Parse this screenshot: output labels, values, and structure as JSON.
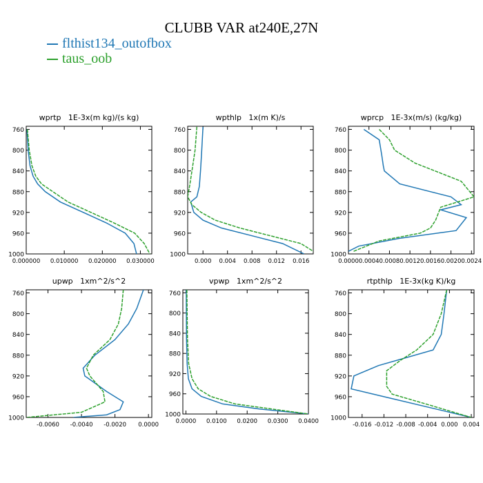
{
  "title": "CLUBB VAR at240E,27N",
  "legend": [
    {
      "label": "flthist134_outofbox",
      "color": "#1f77b4"
    },
    {
      "label": "taus_oob",
      "color": "#2ca02c"
    }
  ],
  "chart_data": [
    {
      "type": "line",
      "title": "wprtp   1E-3x(m kg)/(s kg)",
      "xlim": [
        0,
        0.033
      ],
      "ylim": [
        754,
        1000
      ],
      "y_inverted": true,
      "xticks": [
        0,
        0.01,
        0.02,
        0.03
      ],
      "xticklabels": [
        "0.000000",
        "0.010000",
        "0.020000",
        "0.030000"
      ],
      "yticks": [
        760,
        800,
        840,
        880,
        920,
        960,
        1000
      ],
      "series": [
        {
          "name": "flthist134_outofbox",
          "color": "#1f77b4",
          "dashed": false,
          "x": [
            0.0002,
            0.0005,
            0.001,
            0.0018,
            0.003,
            0.005,
            0.009,
            0.015,
            0.021,
            0.026,
            0.0283,
            0.029
          ],
          "y": [
            760,
            800,
            830,
            850,
            865,
            880,
            900,
            920,
            940,
            960,
            980,
            1000
          ]
        },
        {
          "name": "taus_oob",
          "color": "#2ca02c",
          "dashed": true,
          "x": [
            0.0003,
            0.0008,
            0.0015,
            0.0025,
            0.004,
            0.007,
            0.011,
            0.017,
            0.023,
            0.0285,
            0.031,
            0.0325
          ],
          "y": [
            760,
            800,
            830,
            850,
            865,
            880,
            900,
            920,
            940,
            960,
            980,
            1000
          ]
        }
      ]
    },
    {
      "type": "line",
      "title": "wpthlp   1x(m K)/s",
      "xlim": [
        -0.0025,
        0.018
      ],
      "ylim": [
        754,
        1000
      ],
      "y_inverted": true,
      "xticks": [
        0,
        0.004,
        0.008,
        0.012,
        0.016
      ],
      "xticklabels": [
        "0.000",
        "0.004",
        "0.008",
        "0.012",
        "0.016"
      ],
      "yticks": [
        760,
        800,
        840,
        880,
        920,
        960,
        1000
      ],
      "series": [
        {
          "name": "flthist134_outofbox",
          "color": "#1f77b4",
          "dashed": false,
          "x": [
            0.0,
            -0.0002,
            -0.0004,
            -0.0006,
            -0.001,
            -0.002,
            -0.0015,
            0.0,
            0.003,
            0.008,
            0.013,
            0.0165
          ],
          "y": [
            755,
            800,
            840,
            870,
            890,
            900,
            920,
            935,
            950,
            965,
            980,
            1000
          ]
        },
        {
          "name": "taus_oob",
          "color": "#2ca02c",
          "dashed": true,
          "x": [
            -0.001,
            -0.0013,
            -0.0018,
            -0.0022,
            -0.0025,
            -0.0018,
            -0.0003,
            0.002,
            0.006,
            0.011,
            0.016,
            0.018
          ],
          "y": [
            755,
            800,
            840,
            870,
            890,
            905,
            920,
            935,
            950,
            965,
            980,
            995
          ]
        }
      ]
    },
    {
      "type": "line",
      "title": "wprcp   1E-3x(m/s) (kg/kg)",
      "xlim": [
        0,
        0.00245
      ],
      "ylim": [
        754,
        1000
      ],
      "y_inverted": true,
      "xticks": [
        0,
        0.0004,
        0.0008,
        0.0012,
        0.0016,
        0.002,
        0.0024
      ],
      "xticklabels": [
        "0.0000",
        "0.0004",
        "0.0008",
        "0.0012",
        "0.0016",
        "0.0020",
        "0.0024"
      ],
      "yticks": [
        760,
        800,
        840,
        880,
        920,
        960,
        1000
      ],
      "series": [
        {
          "name": "flthist134_outofbox",
          "color": "#1f77b4",
          "dashed": false,
          "x": [
            0.0003,
            0.0006,
            0.00065,
            0.00068,
            0.0007,
            0.001,
            0.002,
            0.0022,
            0.0018,
            0.0023,
            0.0021,
            0.001,
            0.0002,
            0.0
          ],
          "y": [
            760,
            780,
            810,
            830,
            840,
            865,
            890,
            905,
            915,
            930,
            955,
            970,
            985,
            995
          ]
        },
        {
          "name": "taus_oob",
          "color": "#2ca02c",
          "dashed": true,
          "x": [
            0.0006,
            0.0008,
            0.0009,
            0.0013,
            0.0022,
            0.00245,
            0.0018,
            0.0017,
            0.0016,
            0.0014,
            0.0006,
            0.0001
          ],
          "y": [
            760,
            780,
            800,
            825,
            860,
            890,
            910,
            935,
            950,
            960,
            975,
            995
          ]
        }
      ]
    },
    {
      "type": "line",
      "title": "upwp   1xm^2/s^2",
      "xlim": [
        -0.0073,
        0.0002
      ],
      "ylim": [
        754,
        1000
      ],
      "y_inverted": true,
      "xticks": [
        -0.006,
        -0.004,
        -0.002,
        0.0
      ],
      "xticklabels": [
        "-0.0060",
        "-0.0040",
        "-0.0020",
        "0.0000"
      ],
      "yticks": [
        760,
        800,
        840,
        880,
        920,
        960,
        1000
      ],
      "series": [
        {
          "name": "flthist134_outofbox",
          "color": "#1f77b4",
          "dashed": false,
          "x": [
            -0.0003,
            -0.0007,
            -0.0012,
            -0.002,
            -0.0032,
            -0.0039,
            -0.0038,
            -0.0025,
            -0.0015,
            -0.0017,
            -0.0025,
            -0.0045
          ],
          "y": [
            754,
            790,
            820,
            850,
            880,
            905,
            920,
            950,
            970,
            985,
            995,
            1000
          ]
        },
        {
          "name": "taus_oob",
          "color": "#2ca02c",
          "dashed": true,
          "x": [
            -0.0015,
            -0.0016,
            -0.0018,
            -0.0023,
            -0.0033,
            -0.0037,
            -0.0035,
            -0.0027,
            -0.0026,
            -0.004,
            -0.0073
          ],
          "y": [
            754,
            790,
            820,
            850,
            880,
            905,
            920,
            950,
            970,
            990,
            1000
          ]
        }
      ]
    },
    {
      "type": "line",
      "title": "vpwp   1xm^2/s^2",
      "xlim": [
        -0.001,
        0.04
      ],
      "ylim": [
        754,
        1000
      ],
      "y_inverted": true,
      "xticks": [
        0,
        0.01,
        0.02,
        0.03,
        0.04
      ],
      "xticklabels": [
        "0.0000",
        "0.0100",
        "0.0200",
        "0.0300",
        "0.0400"
      ],
      "yticks": [
        760,
        800,
        840,
        880,
        920,
        960,
        1000
      ],
      "series": [
        {
          "name": "flthist134_outofbox",
          "color": "#1f77b4",
          "dashed": false,
          "x": [
            0.0001,
            0.0002,
            0.0004,
            0.0008,
            0.002,
            0.005,
            0.012,
            0.024,
            0.04
          ],
          "y": [
            754,
            850,
            900,
            930,
            950,
            965,
            980,
            990,
            1000
          ]
        },
        {
          "name": "taus_oob",
          "color": "#2ca02c",
          "dashed": true,
          "x": [
            0.0003,
            0.0005,
            0.0009,
            0.002,
            0.004,
            0.008,
            0.016,
            0.028,
            0.04
          ],
          "y": [
            754,
            850,
            900,
            930,
            950,
            965,
            980,
            990,
            1000
          ]
        }
      ]
    },
    {
      "type": "line",
      "title": "rtpthlp   1E-3x(kg K)/kg",
      "xlim": [
        -0.0185,
        0.0045
      ],
      "ylim": [
        754,
        1000
      ],
      "y_inverted": true,
      "xticks": [
        -0.016,
        -0.012,
        -0.008,
        -0.004,
        0.0,
        0.004
      ],
      "xticklabels": [
        "-0.016",
        "-0.012",
        "-0.008",
        "-0.004",
        "0.000",
        "0.004"
      ],
      "yticks": [
        760,
        800,
        840,
        880,
        920,
        960,
        1000
      ],
      "series": [
        {
          "name": "flthist134_outofbox",
          "color": "#1f77b4",
          "dashed": false,
          "x": [
            -0.0005,
            -0.001,
            -0.0015,
            -0.003,
            -0.008,
            -0.013,
            -0.0175,
            -0.018,
            -0.012,
            -0.002,
            0.004
          ],
          "y": [
            754,
            800,
            840,
            870,
            885,
            900,
            920,
            945,
            960,
            985,
            1000
          ]
        },
        {
          "name": "taus_oob",
          "color": "#2ca02c",
          "dashed": true,
          "x": [
            -0.0005,
            -0.0015,
            -0.003,
            -0.006,
            -0.009,
            -0.0115,
            -0.0115,
            -0.0105,
            -0.004,
            0.004
          ],
          "y": [
            754,
            800,
            840,
            870,
            890,
            910,
            940,
            955,
            975,
            1000
          ]
        }
      ]
    }
  ]
}
